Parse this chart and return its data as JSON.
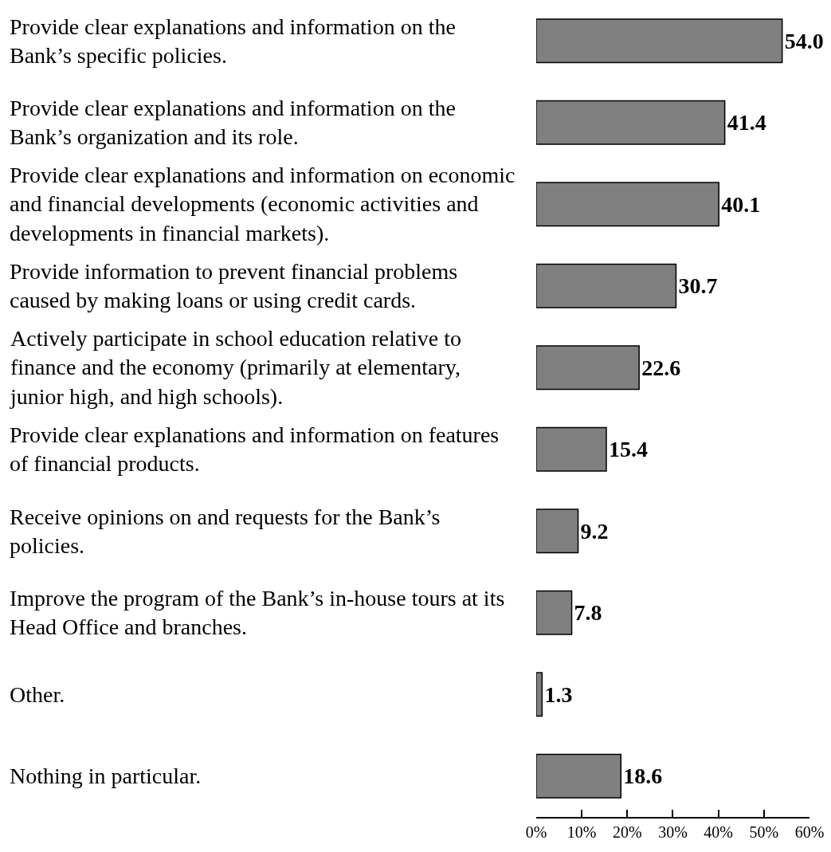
{
  "chart_data": {
    "type": "bar",
    "orientation": "horizontal",
    "categories": [
      "Provide clear explanations and information on the Bank’s specific policies.",
      "Provide clear explanations and information on the Bank’s organization and its role.",
      "Provide clear explanations and information on economic and financial developments (economic activities and developments in financial markets).",
      "Provide information to prevent financial problems caused by making loans or using credit cards.",
      "Actively participate in school education relative to finance and the economy (primarily at elementary, junior high, and high schools).",
      "Provide clear explanations and information on features of financial products.",
      "Receive opinions on and requests for the Bank’s policies.",
      "Improve the program of the Bank’s in-house tours at its Head Office and branches.",
      "Other.",
      "Nothing in particular."
    ],
    "values": [
      54.0,
      41.4,
      40.1,
      30.7,
      22.6,
      15.4,
      9.2,
      7.8,
      1.3,
      18.6
    ],
    "value_labels": [
      "54.0",
      "41.4",
      "40.1",
      "30.7",
      "22.6",
      "15.4",
      "9.2",
      "7.8",
      "1.3",
      "18.6"
    ],
    "color": "#808080",
    "xlim": [
      0,
      60
    ],
    "xticks": [
      {
        "value": 0,
        "label": "0%"
      },
      {
        "value": 10,
        "label": "10%"
      },
      {
        "value": 20,
        "label": "20%"
      },
      {
        "value": 30,
        "label": "30%"
      },
      {
        "value": 40,
        "label": "40%"
      },
      {
        "value": 50,
        "label": "50%"
      },
      {
        "value": 60,
        "label": "60%"
      }
    ]
  }
}
